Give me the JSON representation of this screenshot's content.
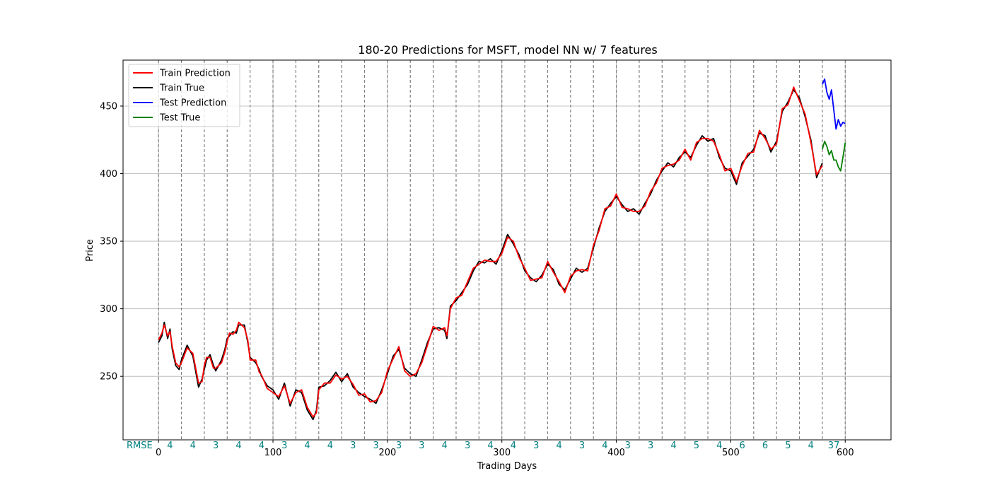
{
  "chart_data": {
    "type": "line",
    "title": "180-20 Predictions for MSFT, model NN w/ 7 features",
    "xlabel": "Trading Days",
    "ylabel": "Price",
    "xlim": [
      -31,
      640
    ],
    "ylim": [
      203,
      484
    ],
    "x_ticks": [
      0,
      100,
      200,
      300,
      400,
      500,
      600
    ],
    "y_ticks": [
      250,
      300,
      350,
      400,
      450
    ],
    "grid": true,
    "legend_position": "top-left",
    "legend": [
      "Train Prediction",
      "Train True",
      "Test Prediction",
      "Test True"
    ],
    "colors": {
      "Train Prediction": "#ff0000",
      "Train True": "#000000",
      "Test Prediction": "#0000ff",
      "Test True": "#008000",
      "split_line": "#808080",
      "rmse_text": "#008080"
    },
    "split_lines_x": [
      0,
      20,
      40,
      60,
      80,
      100,
      120,
      140,
      160,
      180,
      200,
      220,
      240,
      260,
      280,
      300,
      320,
      340,
      360,
      380,
      400,
      420,
      440,
      460,
      480,
      500,
      520,
      540,
      560,
      580,
      600
    ],
    "rmse_label": "RMSE",
    "rmse_values": [
      "4",
      "4",
      "3",
      "4",
      "4",
      "3",
      "4",
      "4",
      "3",
      "3",
      "3",
      "3",
      "4",
      "3",
      "4",
      "4",
      "3",
      "4",
      "3",
      "4",
      "3",
      "3",
      "4",
      "5",
      "4",
      "6",
      "6",
      "5",
      "4",
      "37"
    ],
    "series": [
      {
        "name": "Train True",
        "x": [
          0,
          3,
          5,
          8,
          10,
          12,
          15,
          18,
          20,
          25,
          30,
          35,
          38,
          40,
          42,
          45,
          48,
          50,
          55,
          58,
          60,
          62,
          65,
          68,
          70,
          75,
          78,
          80,
          85,
          88,
          90,
          95,
          100,
          105,
          110,
          115,
          120,
          125,
          130,
          135,
          138,
          140,
          145,
          150,
          155,
          160,
          165,
          170,
          175,
          180,
          185,
          190,
          195,
          200,
          205,
          210,
          215,
          220,
          225,
          230,
          235,
          240,
          245,
          250,
          252,
          255,
          260,
          265,
          270,
          275,
          280,
          285,
          290,
          295,
          300,
          305,
          310,
          315,
          320,
          325,
          330,
          335,
          340,
          345,
          350,
          355,
          360,
          365,
          370,
          375,
          380,
          385,
          390,
          395,
          400,
          405,
          410,
          415,
          420,
          425,
          430,
          435,
          440,
          445,
          450,
          455,
          460,
          465,
          470,
          475,
          480,
          485,
          490,
          495,
          500,
          505,
          510,
          515,
          520,
          525,
          530,
          535,
          540,
          545,
          550,
          555,
          560,
          565,
          570,
          575,
          580
        ],
        "y": [
          275,
          280,
          290,
          278,
          285,
          270,
          258,
          255,
          262,
          273,
          265,
          242,
          248,
          255,
          262,
          266,
          258,
          254,
          262,
          270,
          278,
          280,
          283,
          282,
          288,
          288,
          275,
          264,
          260,
          255,
          250,
          243,
          240,
          233,
          245,
          228,
          240,
          238,
          225,
          218,
          225,
          242,
          243,
          247,
          253,
          246,
          252,
          242,
          238,
          235,
          233,
          230,
          240,
          252,
          265,
          270,
          256,
          252,
          250,
          262,
          275,
          285,
          286,
          284,
          278,
          302,
          306,
          312,
          318,
          328,
          335,
          334,
          337,
          333,
          343,
          355,
          348,
          340,
          328,
          323,
          320,
          325,
          333,
          329,
          318,
          314,
          322,
          330,
          327,
          330,
          345,
          360,
          372,
          378,
          383,
          377,
          372,
          374,
          370,
          378,
          385,
          395,
          402,
          408,
          405,
          412,
          416,
          412,
          421,
          428,
          424,
          426,
          412,
          404,
          402,
          392,
          408,
          413,
          418,
          430,
          428,
          416,
          424,
          446,
          453,
          462,
          456,
          442,
          425,
          397,
          408
        ]
      },
      {
        "name": "Train Prediction",
        "x": [
          0,
          3,
          5,
          8,
          10,
          12,
          15,
          18,
          20,
          25,
          30,
          35,
          38,
          40,
          42,
          45,
          48,
          50,
          55,
          58,
          60,
          62,
          65,
          68,
          70,
          75,
          78,
          80,
          85,
          88,
          90,
          95,
          100,
          105,
          110,
          115,
          120,
          125,
          130,
          135,
          138,
          140,
          145,
          150,
          155,
          160,
          165,
          170,
          175,
          180,
          185,
          190,
          195,
          200,
          205,
          210,
          215,
          220,
          225,
          230,
          235,
          240,
          245,
          250,
          252,
          255,
          260,
          265,
          270,
          275,
          280,
          285,
          290,
          295,
          300,
          305,
          310,
          315,
          320,
          325,
          330,
          335,
          340,
          345,
          350,
          355,
          360,
          365,
          370,
          375,
          380,
          385,
          390,
          395,
          400,
          405,
          410,
          415,
          420,
          425,
          430,
          435,
          440,
          445,
          450,
          455,
          460,
          465,
          470,
          475,
          480,
          485,
          490,
          495,
          500,
          505,
          510,
          515,
          520,
          525,
          530,
          535,
          540,
          545,
          550,
          555,
          560,
          565,
          570,
          575,
          580
        ],
        "y": [
          277,
          282,
          288,
          280,
          283,
          272,
          260,
          257,
          260,
          271,
          267,
          245,
          246,
          258,
          264,
          264,
          256,
          256,
          260,
          268,
          276,
          282,
          281,
          284,
          290,
          286,
          277,
          262,
          262,
          253,
          251,
          241,
          238,
          235,
          243,
          230,
          238,
          240,
          227,
          220,
          223,
          240,
          245,
          245,
          251,
          248,
          250,
          244,
          236,
          237,
          231,
          232,
          238,
          254,
          263,
          272,
          254,
          250,
          252,
          260,
          273,
          287,
          284,
          286,
          280,
          300,
          308,
          310,
          320,
          330,
          333,
          336,
          335,
          335,
          341,
          353,
          350,
          338,
          330,
          321,
          322,
          323,
          335,
          327,
          320,
          312,
          324,
          328,
          329,
          328,
          347,
          358,
          374,
          376,
          385,
          375,
          374,
          372,
          372,
          376,
          387,
          393,
          404,
          406,
          407,
          410,
          418,
          410,
          423,
          426,
          426,
          424,
          414,
          402,
          404,
          394,
          406,
          415,
          416,
          432,
          426,
          418,
          422,
          448,
          451,
          464,
          454,
          444,
          423,
          399,
          406
        ]
      },
      {
        "name": "Test Prediction",
        "x": [
          580,
          582,
          584,
          586,
          588,
          590,
          592,
          594,
          596,
          598,
          600
        ],
        "y": [
          466,
          470,
          460,
          455,
          462,
          447,
          433,
          440,
          435,
          438,
          437
        ]
      },
      {
        "name": "Test True",
        "x": [
          580,
          582,
          584,
          586,
          588,
          590,
          592,
          594,
          596,
          598,
          600
        ],
        "y": [
          418,
          424,
          420,
          414,
          417,
          410,
          410,
          405,
          402,
          412,
          423
        ]
      }
    ]
  }
}
